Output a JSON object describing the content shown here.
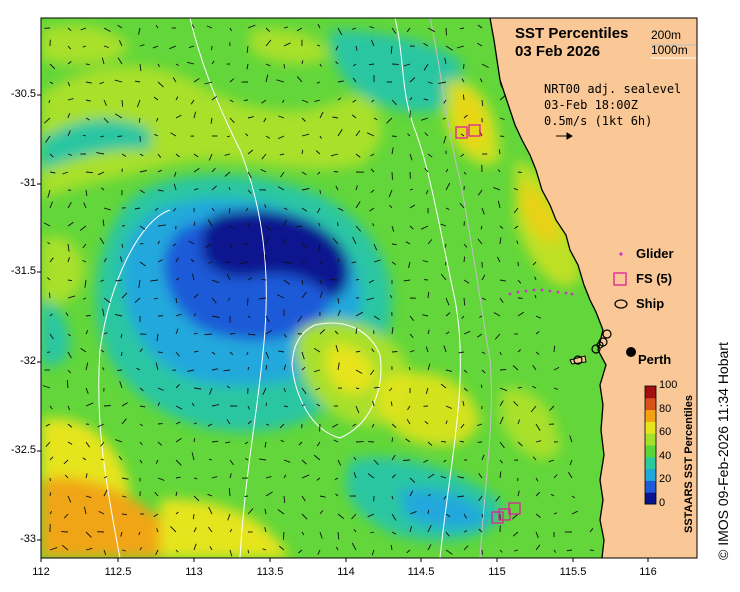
{
  "map": {
    "title_line1": "SST Percentiles",
    "title_line2": "03 Feb 2026",
    "depth_200": "200m",
    "depth_1000": "1000m",
    "vector_product": "NRT00 adj. sealevel",
    "vector_time": "03-Feb 18:00Z",
    "vector_scale": "0.5m/s (1kt 6h)",
    "city": "Perth",
    "x_ticks": [
      "112",
      "112.5",
      "113",
      "113.5",
      "114",
      "114.5",
      "115",
      "115.5",
      "116"
    ],
    "y_ticks": [
      "-30.5",
      "-31",
      "-31.5",
      "-32",
      "-32.5",
      "-33"
    ],
    "land_color": "#f9c896",
    "credit": "© IMOS 09-Feb-2026 11:34 Hobart"
  },
  "legend": {
    "glider": "Glider",
    "fs": "FS (5)",
    "ship": "Ship",
    "glider_color": "#cc33cc",
    "fs_color": "#e0209a"
  },
  "colorbar": {
    "title": "SSTAARS SST Percentiles",
    "ticks": [
      "100",
      "80",
      "60",
      "40",
      "20",
      "0"
    ],
    "colors": [
      "#08158f",
      "#1f5ad8",
      "#22a7dc",
      "#2ac99e",
      "#59d63a",
      "#a2e02b",
      "#e6e41a",
      "#f3a312",
      "#d9511a",
      "#a10f0f"
    ]
  }
}
